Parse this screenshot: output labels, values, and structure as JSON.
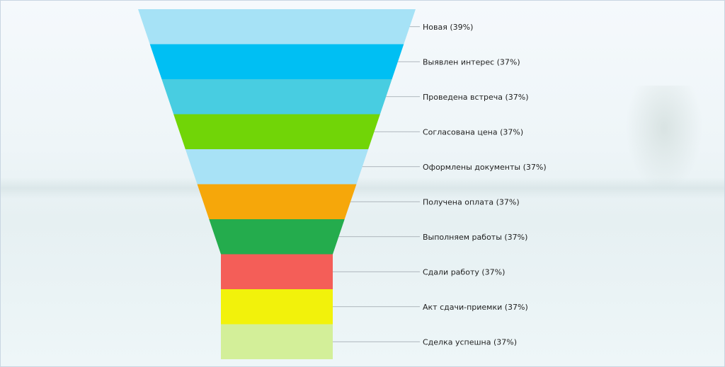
{
  "chart_data": {
    "type": "funnel",
    "stages": [
      {
        "label": "Новая (39%)",
        "value": 39,
        "color": "#a6e2f6"
      },
      {
        "label": "Выявлен интерес (37%)",
        "value": 37,
        "color": "#00bff3"
      },
      {
        "label": "Проведена встреча (37%)",
        "value": 37,
        "color": "#48cde1"
      },
      {
        "label": "Согласована цена (37%)",
        "value": 37,
        "color": "#71d507"
      },
      {
        "label": "Оформлены документы (37%)",
        "value": 37,
        "color": "#a8e2f6"
      },
      {
        "label": "Получена оплата (37%)",
        "value": 37,
        "color": "#f6a70a"
      },
      {
        "label": "Выполняем работы (37%)",
        "value": 37,
        "color": "#24ac4d"
      },
      {
        "label": "Сдали работу (37%)",
        "value": 37,
        "color": "#f45e58"
      },
      {
        "label": "Акт сдачи-приемки (37%)",
        "value": 37,
        "color": "#f2f20b"
      },
      {
        "label": "Сделка успешна (37%)",
        "value": 37,
        "color": "#d3ef99"
      }
    ]
  }
}
